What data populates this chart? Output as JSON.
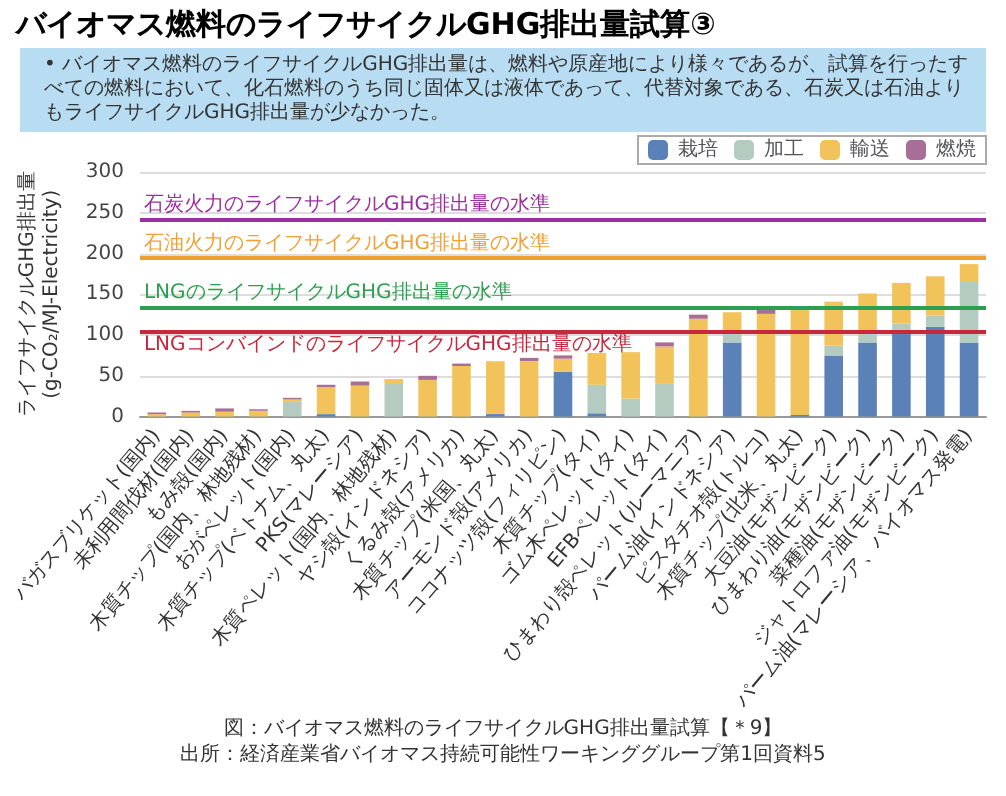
{
  "chart_data": {
    "type": "bar",
    "title": "バイオマス燃料のライフサイクルGHG排出量試算③",
    "subtitle": "• バイオマス燃料のライフサイクルGHG排出量は、燃料や原産地により様々であるが、試算を行ったすべての燃料において、化石燃料のうち同じ固体又は液体であって、代替対象である、石炭又は石油よりもライフサイクルGHG排出量が少なかった。",
    "ylabel": "ライフサイクルGHG排出量\n(g-CO₂/MJ-Electricity)",
    "categories": [
      "バガスブリケット(国内)",
      "未利用間伐材(国内)",
      "もみ殻(国内)",
      "木質チップ(国内、林地残材)",
      "おがペレット(国内)",
      "木質チップ(ベトナム、丸太)",
      "PKS(マレーシア)",
      "木質ペレット(国内、林地残材)",
      "ヤシ殻(インドネシア)",
      "くるみ殻(アメリカ)",
      "木質チップ(米国、丸太)",
      "アーモンド殻(アメリカ)",
      "ココナッツ殻(フィリピン)",
      "木質チップ(タイ)",
      "ゴム木ペレット(タイ)",
      "EFBペレット(タイ)",
      "ひまわり殻ペレット(ルーマニア)",
      "パーム油(インドネシア)",
      "ピスタチオ殻(トルコ)",
      "木質チップ(北米、丸太)",
      "大豆油(モザンビーク)",
      "ひまわり油(モザンビーク)",
      "菜種油(モザンビーク)",
      "ジャトロファ油(モザンビーク)",
      "パーム油(マレーシア、バイオマス発電)"
    ],
    "series": [
      {
        "name": "栽培",
        "color": "#5b82b8",
        "values": [
          0,
          0,
          0,
          0,
          0,
          3,
          0,
          0,
          0,
          0,
          3,
          0,
          55,
          4,
          0,
          0,
          0,
          91,
          0,
          2,
          75,
          91,
          102,
          110,
          91
        ]
      },
      {
        "name": "加工",
        "color": "#b4ccc0",
        "values": [
          null,
          null,
          null,
          null,
          18,
          0,
          0,
          40,
          0,
          0,
          0,
          0,
          0,
          35,
          22,
          41,
          0,
          11,
          0,
          0,
          12,
          11,
          12,
          14,
          74
        ]
      },
      {
        "name": "輸送",
        "color": "#f2c35a",
        "values": [
          3,
          5,
          6,
          7,
          3,
          33,
          38,
          6,
          45,
          62,
          65,
          68,
          16,
          39,
          57,
          45,
          120,
          26,
          126,
          130,
          54,
          49,
          50,
          48,
          22
        ]
      },
      {
        "name": "燃焼",
        "color": "#a86e96",
        "values": [
          2,
          2,
          4,
          2,
          2,
          3,
          5,
          0,
          5,
          3,
          0,
          4,
          4,
          0,
          0,
          5,
          5,
          0,
          5,
          0,
          0,
          0,
          0,
          0,
          0
        ]
      }
    ],
    "stacked": true,
    "ylim": [
      0,
      300
    ],
    "yticks": [
      0,
      50,
      100,
      150,
      200,
      250,
      300
    ],
    "grid": "y",
    "legend": "top right",
    "ref_lines": [
      {
        "axis": "y",
        "value": 242,
        "label": "石炭火力のライフサイクルGHG排出量の水準",
        "color": "#9b2fa0"
      },
      {
        "axis": "y",
        "value": 195,
        "label": "石油火力のライフサイクルGHG排出量の水準",
        "color": "#f0a030"
      },
      {
        "axis": "y",
        "value": 134,
        "label": "LNGのライフサイクルGHG排出量の水準",
        "color": "#2ca050"
      },
      {
        "axis": "y",
        "value": 105,
        "label": "LNGコンバインドのライフサイクルGHG排出量の水準",
        "color": "#c8283c"
      }
    ],
    "annotations": [
      "図：バイオマス燃料のライフサイクルGHG排出量試算【＊9】",
      "出所：経済産業省バイオマス持続可能性ワーキンググループ第1回資料5"
    ]
  }
}
